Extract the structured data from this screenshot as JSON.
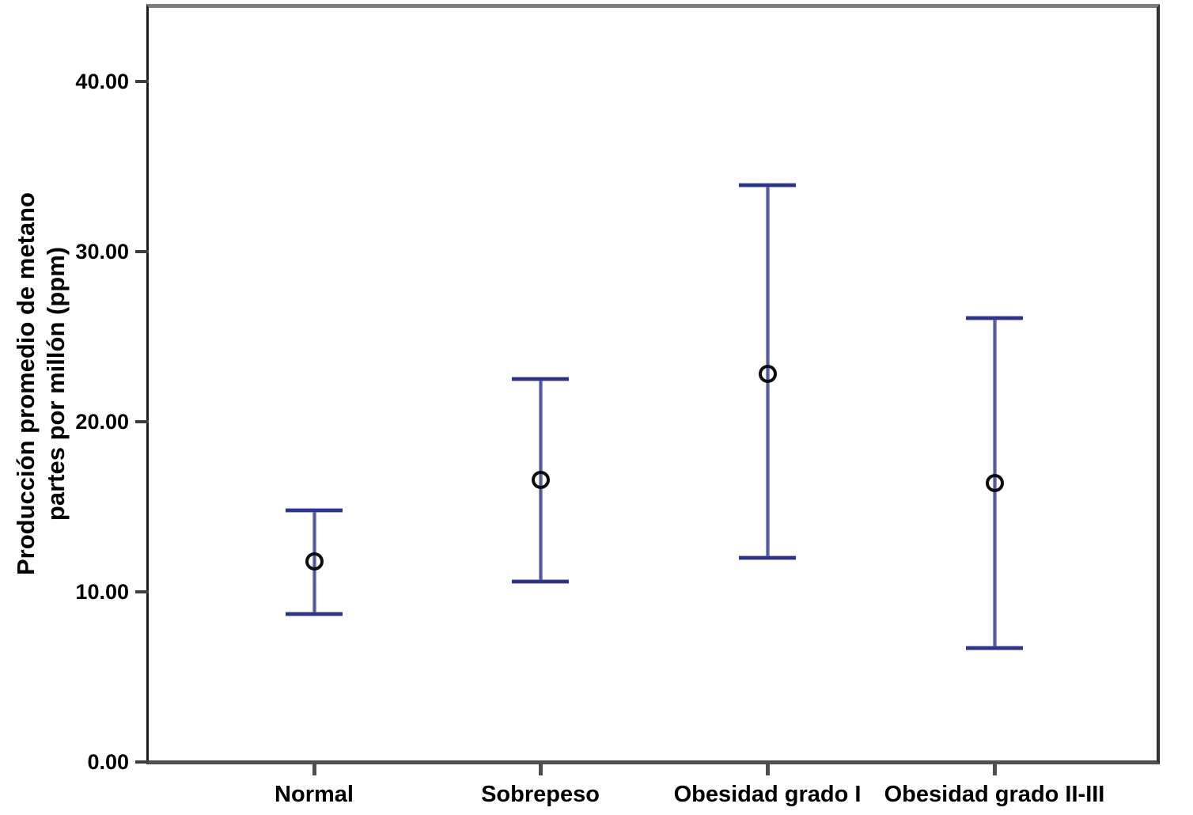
{
  "figure": {
    "background": "#ffffff"
  },
  "y_axis": {
    "title_line1": "Producción promedio de metano",
    "title_line2": "partes por millón (ppm)",
    "tick_labels": [
      "0.00",
      "10.00",
      "20.00",
      "30.00",
      "40.00"
    ],
    "tick_values": [
      0,
      10,
      20,
      30,
      40
    ]
  },
  "chart_data": {
    "type": "errorbar",
    "title": "",
    "xlabel": "",
    "ylabel": "Producción promedio de metano partes por millón (ppm)",
    "categories": [
      "Normal",
      "Sobrepeso",
      "Obesidad grado I",
      "Obesidad grado II-III"
    ],
    "series": [
      {
        "name": "mean",
        "values": [
          11.8,
          16.6,
          22.8,
          16.4
        ]
      }
    ],
    "error_upper": [
      14.8,
      22.5,
      33.9,
      26.1
    ],
    "error_lower": [
      8.7,
      10.6,
      12.0,
      6.7
    ],
    "ylim": [
      0,
      44.4
    ],
    "grid": "off",
    "legend": "none",
    "colors": {
      "stem": "#8487bd",
      "stem_core": "#474c9b",
      "cap": "#2f3390",
      "marker_ring": "#0d0d0d",
      "axis": "#3f3f3f",
      "text": "#000000"
    }
  }
}
